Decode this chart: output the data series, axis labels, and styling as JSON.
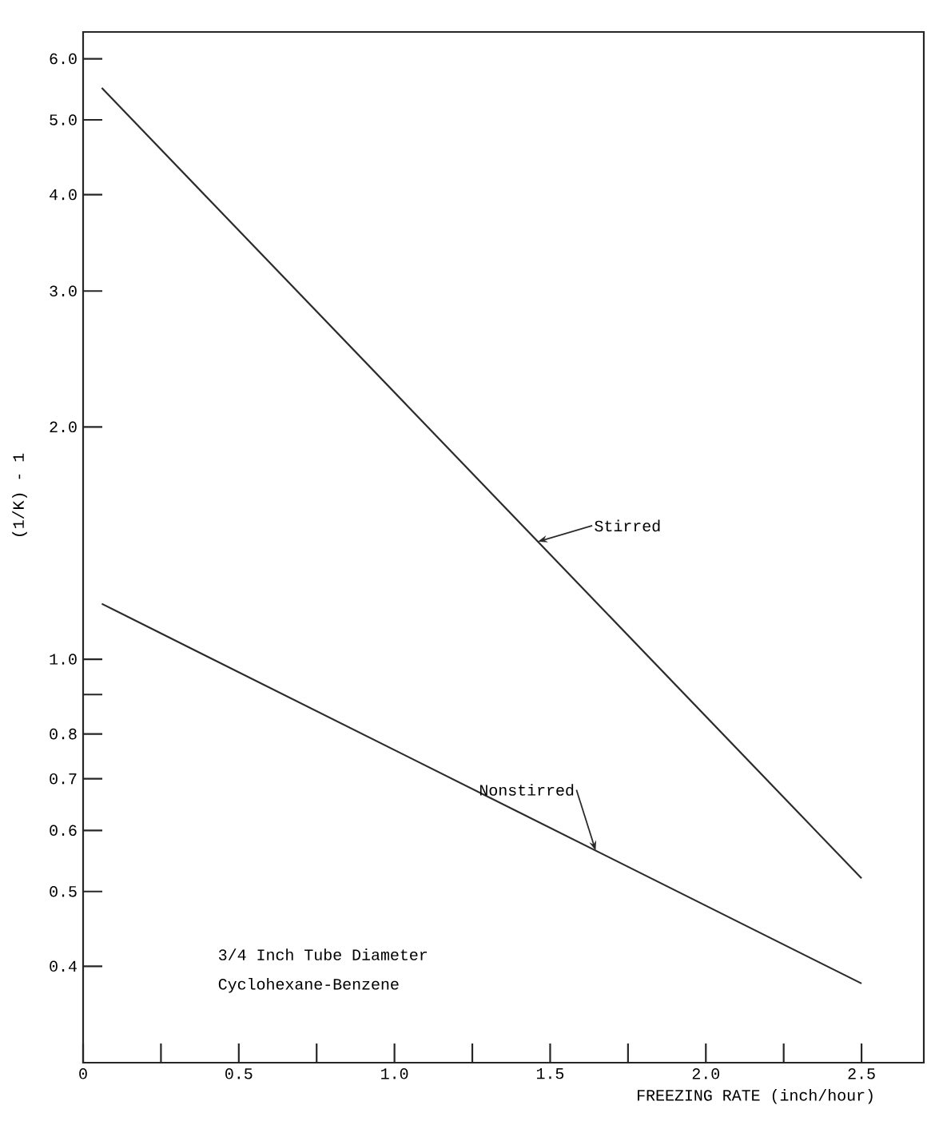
{
  "chart_data": {
    "type": "line",
    "xlabel": "FREEZING RATE (inch/hour)",
    "ylabel": "(1/K) - 1",
    "annotations": [
      "3/4 Inch Tube Diameter",
      "Cyclohexane-Benzene"
    ],
    "log": "y",
    "xlim": [
      0,
      2.7
    ],
    "ylim": [
      0.3,
      6.5
    ],
    "xticks": [
      0,
      {
        "value": 0.25,
        "label": null
      },
      0.5,
      {
        "value": 0.75,
        "label": null
      },
      {
        "value": 1,
        "label": "1.0"
      },
      {
        "value": 1.25,
        "label": null
      },
      1.5,
      {
        "value": 1.75,
        "label": null
      },
      {
        "value": 2,
        "label": "2.0"
      },
      {
        "value": 2.25,
        "label": null
      },
      2.5
    ],
    "yticks": [
      {
        "value": 0.4,
        "label": "0.4"
      },
      {
        "value": 0.5,
        "label": "0.5"
      },
      {
        "value": 0.6,
        "label": "0.6"
      },
      {
        "value": 0.7,
        "label": "0.7"
      },
      {
        "value": 0.8,
        "label": "0.8"
      },
      {
        "value": 0.9,
        "label": null
      },
      {
        "value": 1,
        "label": "1.0"
      },
      {
        "value": 2,
        "label": "2.0"
      },
      {
        "value": 3,
        "label": "3.0"
      },
      {
        "value": 4,
        "label": "4.0"
      },
      {
        "value": 5,
        "label": "5.0"
      },
      {
        "value": 6,
        "label": "6.0"
      }
    ],
    "x": [
      0.06,
      2.5
    ],
    "series": [
      {
        "name": "Stirred",
        "color": "#2b2b2b",
        "values": [
          5.5,
          0.52
        ]
      },
      {
        "name": "Nonstirred",
        "color": "#2b2b2b",
        "values": [
          1.18,
          0.38
        ]
      }
    ]
  }
}
